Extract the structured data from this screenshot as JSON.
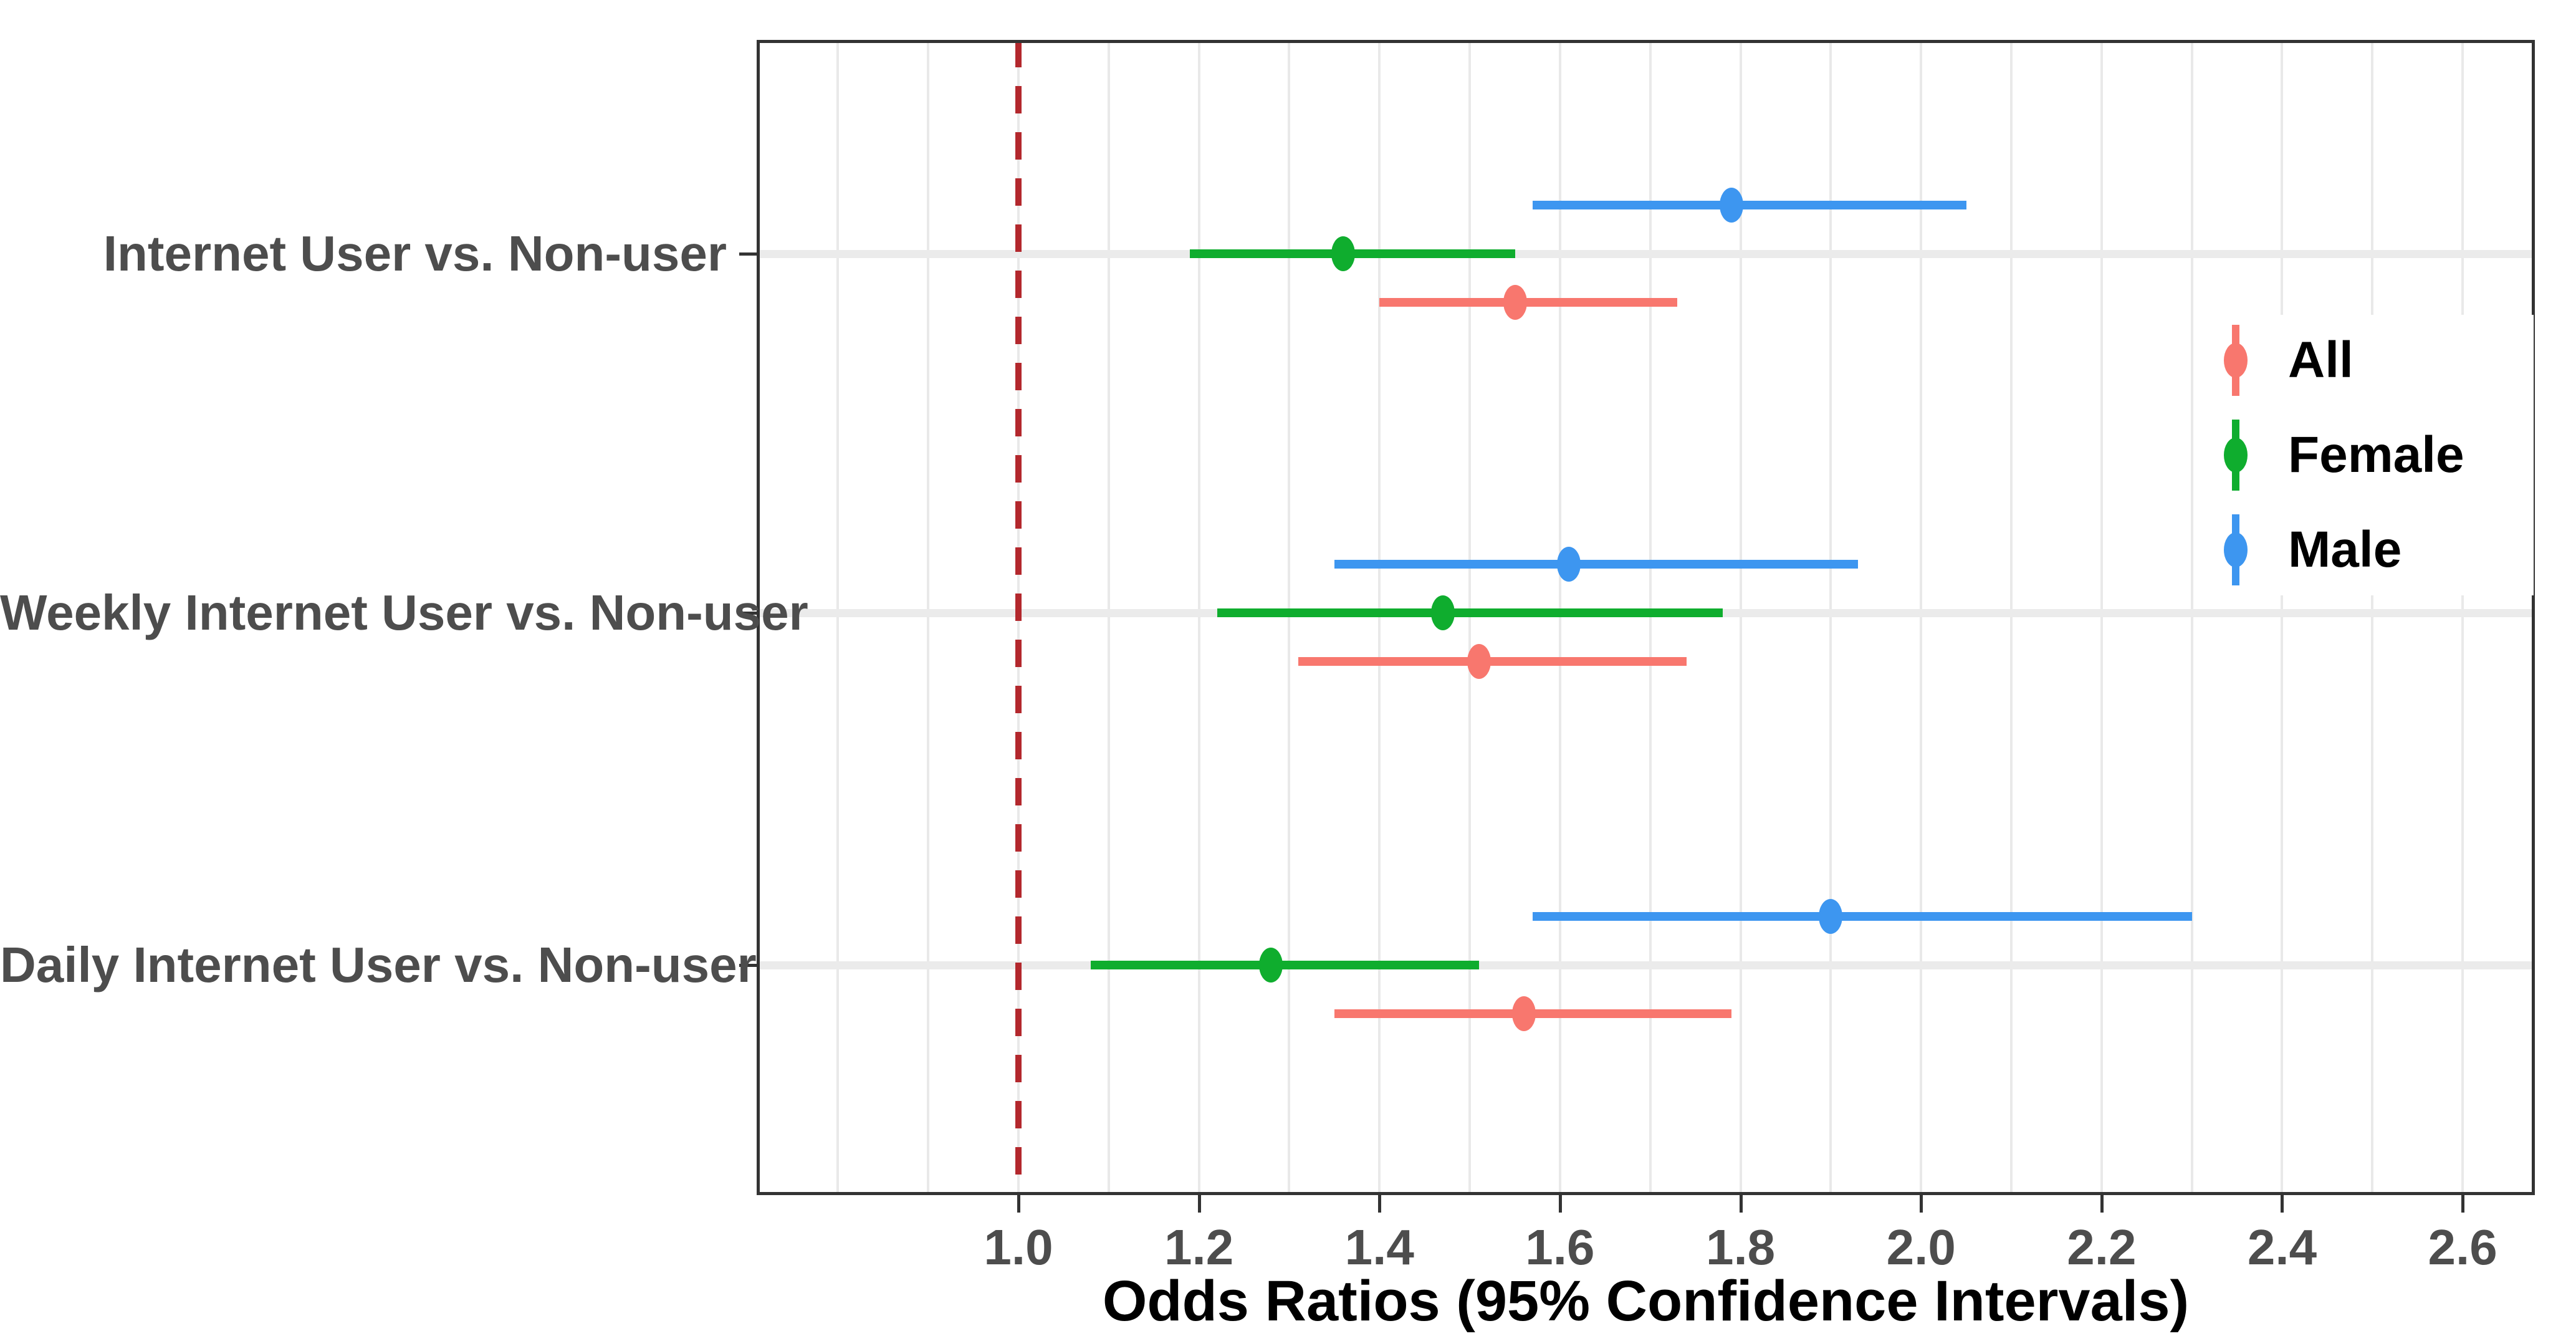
{
  "chart_data": {
    "type": "pointrange",
    "orientation": "horizontal",
    "xlabel": "Odds Ratios (95% Confidence Intervals)",
    "xlim": [
      0.71,
      2.68
    ],
    "x_ticks": [
      1.0,
      1.2,
      1.4,
      1.6,
      1.8,
      2.0,
      2.2,
      2.4,
      2.6
    ],
    "x_tick_labels": [
      "1.0",
      "1.2",
      "1.4",
      "1.6",
      "1.8",
      "2.0",
      "2.2",
      "2.4",
      "2.6"
    ],
    "minor_grid_step": 0.1,
    "grid": "vertical gridlines every 0.1 from 0.8 to 2.6; light gray row band at each category",
    "reference_line": {
      "x": 1.0,
      "style": "dashed",
      "color": "#b3282d"
    },
    "categories": [
      "Internet User vs. Non-user",
      "Weekly Internet User vs. Non-user",
      "Daily Internet User vs. Non-user"
    ],
    "legend": {
      "position": "inside-right",
      "entries": [
        "All",
        "Female",
        "Male"
      ]
    },
    "series": [
      {
        "name": "All",
        "color": "#f8776e",
        "values": [
          {
            "or": 1.55,
            "ci_low": 1.4,
            "ci_high": 1.73
          },
          {
            "or": 1.51,
            "ci_low": 1.31,
            "ci_high": 1.74
          },
          {
            "or": 1.56,
            "ci_low": 1.35,
            "ci_high": 1.79
          }
        ]
      },
      {
        "name": "Female",
        "color": "#0fad2e",
        "values": [
          {
            "or": 1.36,
            "ci_low": 1.19,
            "ci_high": 1.55
          },
          {
            "or": 1.47,
            "ci_low": 1.22,
            "ci_high": 1.78
          },
          {
            "or": 1.28,
            "ci_low": 1.08,
            "ci_high": 1.51
          }
        ]
      },
      {
        "name": "Male",
        "color": "#3d96f0",
        "values": [
          {
            "or": 1.79,
            "ci_low": 1.57,
            "ci_high": 2.05
          },
          {
            "or": 1.61,
            "ci_low": 1.35,
            "ci_high": 1.93
          },
          {
            "or": 1.9,
            "ci_low": 1.57,
            "ci_high": 2.3
          }
        ]
      }
    ],
    "colors": {
      "panel_border": "#333333",
      "gridline": "#e9e9e9",
      "category_band": "#ebebeb",
      "axis_text": "#4d4d4d",
      "title_text": "#000000",
      "background": "#ffffff"
    }
  }
}
